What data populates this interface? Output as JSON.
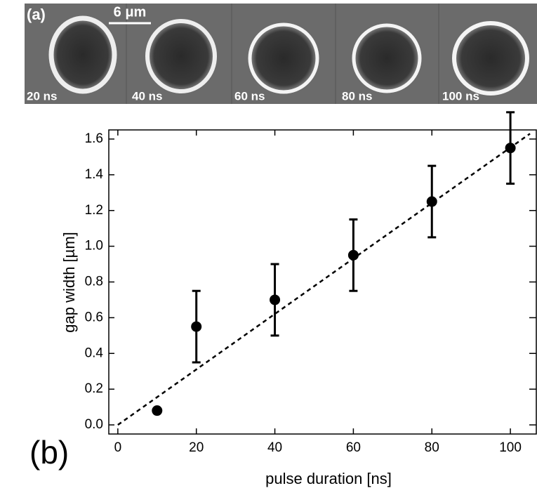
{
  "panel_a": {
    "label": "(a)",
    "scale_bar": "6 μm",
    "images": [
      "20 ns",
      "40 ns",
      "60 ns",
      "80 ns",
      "100 ns"
    ]
  },
  "chart_data": {
    "type": "scatter",
    "panel_label": "(b)",
    "x_label": "pulse duration [ns]",
    "y_label": "gap width [µm]",
    "x": [
      10,
      20,
      40,
      60,
      80,
      100
    ],
    "values": [
      0.08,
      0.55,
      0.7,
      0.95,
      1.25,
      1.55
    ],
    "errors": [
      null,
      0.2,
      0.2,
      0.2,
      0.2,
      0.2
    ],
    "color": "#000000",
    "fit": {
      "x": [
        0,
        105
      ],
      "values": [
        0,
        1.63
      ],
      "color": "#000000",
      "dashed": true
    },
    "xlim": [
      -2.3,
      106.6
    ],
    "ylim": [
      -0.051,
      1.651
    ],
    "xticks": [
      0,
      20,
      40,
      60,
      80,
      100
    ],
    "yticks": [
      {
        "value": 0,
        "label": "0.0"
      },
      0.2,
      0.4,
      0.6,
      0.8,
      {
        "value": 1,
        "label": "1.0"
      },
      1.2,
      1.4,
      1.6
    ],
    "grid": false
  }
}
